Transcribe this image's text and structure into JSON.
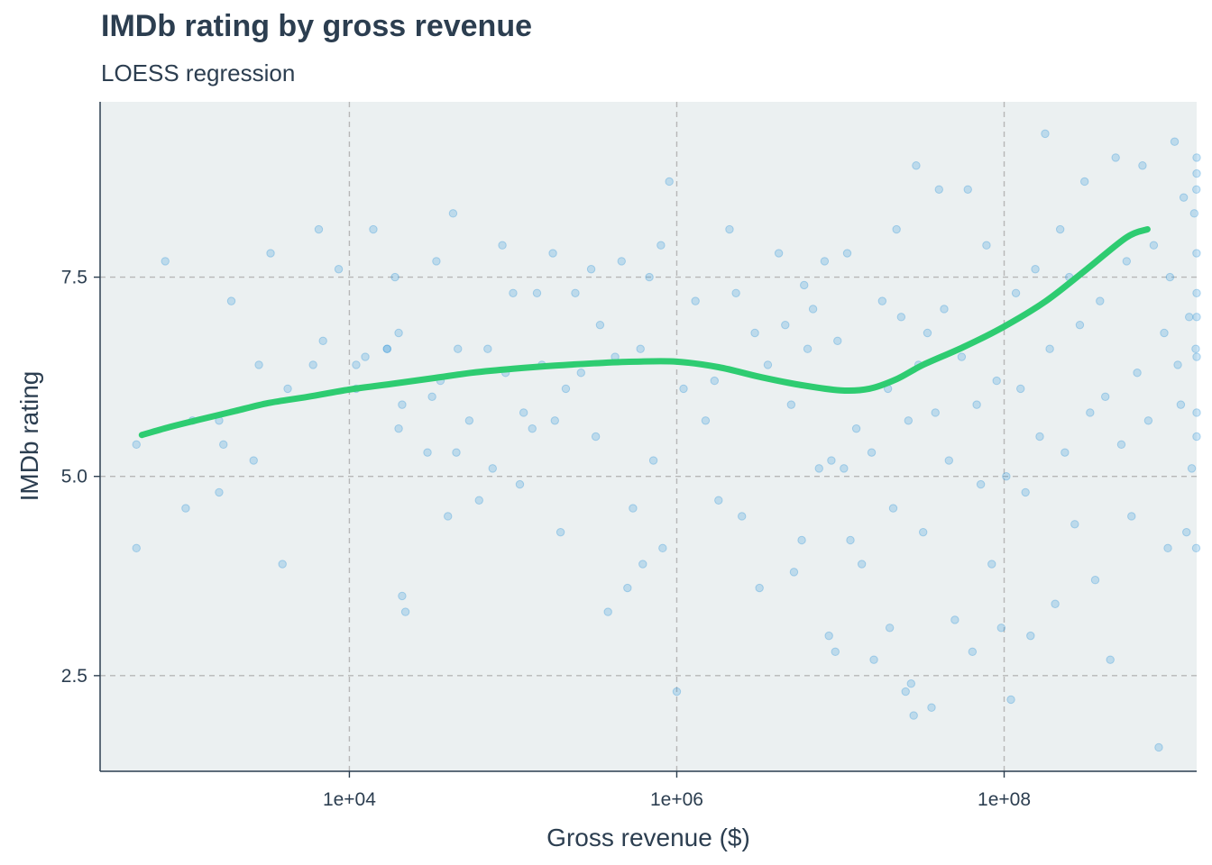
{
  "chart_data": {
    "type": "scatter",
    "title": "IMDb rating by gross revenue",
    "subtitle": "LOESS regression",
    "xlabel": "Gross revenue ($)",
    "ylabel": "IMDb rating",
    "x_scale": "log10",
    "xlim": [
      300,
      1500000000
    ],
    "ylim": [
      1.3,
      9.7
    ],
    "x_ticks": [
      10000,
      1000000,
      100000000
    ],
    "x_tick_labels": [
      "1e+04",
      "1e+06",
      "1e+08"
    ],
    "y_ticks": [
      2.5,
      5.0,
      7.5
    ],
    "y_tick_labels": [
      "2.5",
      "5.0",
      "7.5"
    ],
    "grid": true,
    "colors": {
      "panel": "#ebf0f1",
      "points": "#3498db",
      "loess": "#2ecc71",
      "grid": "#b7b7b7",
      "axis": "#2c3e50"
    },
    "series": [
      {
        "type": "scatter",
        "points": [
          [
            500,
            5.4
          ],
          [
            500,
            4.1
          ],
          [
            750,
            7.7
          ],
          [
            1000,
            4.6
          ],
          [
            1100,
            5.7
          ],
          [
            1600,
            5.7
          ],
          [
            1900,
            7.2
          ],
          [
            1600,
            4.8
          ],
          [
            1700,
            5.4
          ],
          [
            2800,
            6.4
          ],
          [
            2600,
            5.2
          ],
          [
            3300,
            7.8
          ],
          [
            4200,
            6.1
          ],
          [
            3900,
            3.9
          ],
          [
            6000,
            6.4
          ],
          [
            6500,
            8.1
          ],
          [
            6900,
            6.7
          ],
          [
            8600,
            7.6
          ],
          [
            11000,
            6.1
          ],
          [
            11000,
            6.4
          ],
          [
            12500,
            6.5
          ],
          [
            14000,
            8.1
          ],
          [
            17000,
            6.6
          ],
          [
            17000,
            6.6
          ],
          [
            19000,
            7.5
          ],
          [
            20000,
            5.6
          ],
          [
            20000,
            6.8
          ],
          [
            21000,
            5.9
          ],
          [
            21000,
            3.5
          ],
          [
            22000,
            3.3
          ],
          [
            30000,
            5.3
          ],
          [
            32000,
            6.0
          ],
          [
            34000,
            7.7
          ],
          [
            36000,
            6.2
          ],
          [
            40000,
            4.5
          ],
          [
            43000,
            8.3
          ],
          [
            46000,
            6.6
          ],
          [
            45000,
            5.3
          ],
          [
            54000,
            5.7
          ],
          [
            62000,
            4.7
          ],
          [
            70000,
            6.6
          ],
          [
            75000,
            5.1
          ],
          [
            86000,
            7.9
          ],
          [
            90000,
            6.3
          ],
          [
            100000,
            7.3
          ],
          [
            110000,
            4.9
          ],
          [
            116000,
            5.8
          ],
          [
            131000,
            5.6
          ],
          [
            140000,
            7.3
          ],
          [
            150000,
            6.4
          ],
          [
            175000,
            7.8
          ],
          [
            180000,
            5.7
          ],
          [
            195000,
            4.3
          ],
          [
            210000,
            6.1
          ],
          [
            240000,
            7.3
          ],
          [
            260000,
            6.3
          ],
          [
            300000,
            7.6
          ],
          [
            320000,
            5.5
          ],
          [
            340000,
            6.9
          ],
          [
            380000,
            3.3
          ],
          [
            420000,
            6.5
          ],
          [
            460000,
            7.7
          ],
          [
            500000,
            3.6
          ],
          [
            540000,
            4.6
          ],
          [
            600000,
            6.6
          ],
          [
            620000,
            3.9
          ],
          [
            680000,
            7.5
          ],
          [
            720000,
            5.2
          ],
          [
            800000,
            7.9
          ],
          [
            820000,
            4.1
          ],
          [
            900000,
            8.7
          ],
          [
            1000000,
            2.3
          ],
          [
            1100000,
            6.1
          ],
          [
            1300000,
            7.2
          ],
          [
            1500000,
            5.7
          ],
          [
            1700000,
            6.2
          ],
          [
            1800000,
            4.7
          ],
          [
            2100000,
            8.1
          ],
          [
            2300000,
            7.3
          ],
          [
            2500000,
            4.5
          ],
          [
            3000000,
            6.8
          ],
          [
            3200000,
            3.6
          ],
          [
            3600000,
            6.4
          ],
          [
            4200000,
            7.8
          ],
          [
            4600000,
            6.9
          ],
          [
            5000000,
            5.9
          ],
          [
            5200000,
            3.8
          ],
          [
            5800000,
            4.2
          ],
          [
            6000000,
            7.4
          ],
          [
            6300000,
            6.6
          ],
          [
            6800000,
            7.1
          ],
          [
            7400000,
            5.1
          ],
          [
            8000000,
            7.7
          ],
          [
            8500000,
            3.0
          ],
          [
            8800000,
            5.2
          ],
          [
            9300000,
            2.8
          ],
          [
            9600000,
            6.7
          ],
          [
            10500000,
            5.1
          ],
          [
            11000000,
            7.8
          ],
          [
            11500000,
            4.2
          ],
          [
            12500000,
            5.6
          ],
          [
            13500000,
            3.9
          ],
          [
            15500000,
            5.3
          ],
          [
            16000000,
            2.7
          ],
          [
            18000000,
            7.2
          ],
          [
            19500000,
            6.1
          ],
          [
            20000000,
            3.1
          ],
          [
            21000000,
            4.6
          ],
          [
            22000000,
            8.1
          ],
          [
            23500000,
            7.0
          ],
          [
            25000000,
            2.3
          ],
          [
            26000000,
            5.7
          ],
          [
            27000000,
            2.4
          ],
          [
            28000000,
            2.0
          ],
          [
            29000000,
            8.9
          ],
          [
            30000000,
            6.4
          ],
          [
            32000000,
            4.3
          ],
          [
            34000000,
            6.8
          ],
          [
            36000000,
            2.1
          ],
          [
            38000000,
            5.8
          ],
          [
            40000000,
            8.6
          ],
          [
            43000000,
            7.1
          ],
          [
            46000000,
            5.2
          ],
          [
            50000000,
            3.2
          ],
          [
            55000000,
            6.5
          ],
          [
            60000000,
            8.6
          ],
          [
            64000000,
            2.8
          ],
          [
            68000000,
            5.9
          ],
          [
            72000000,
            4.9
          ],
          [
            78000000,
            7.9
          ],
          [
            84000000,
            3.9
          ],
          [
            90000000,
            6.2
          ],
          [
            96000000,
            3.1
          ],
          [
            103000000,
            5.0
          ],
          [
            110000000,
            2.2
          ],
          [
            118000000,
            7.3
          ],
          [
            126000000,
            6.1
          ],
          [
            135000000,
            4.8
          ],
          [
            145000000,
            3.0
          ],
          [
            155000000,
            7.6
          ],
          [
            165000000,
            5.5
          ],
          [
            178000000,
            9.3
          ],
          [
            190000000,
            6.6
          ],
          [
            205000000,
            3.4
          ],
          [
            220000000,
            8.1
          ],
          [
            235000000,
            5.3
          ],
          [
            250000000,
            7.5
          ],
          [
            270000000,
            4.4
          ],
          [
            290000000,
            6.9
          ],
          [
            310000000,
            8.7
          ],
          [
            335000000,
            5.8
          ],
          [
            360000000,
            3.7
          ],
          [
            385000000,
            7.2
          ],
          [
            415000000,
            6.0
          ],
          [
            445000000,
            2.7
          ],
          [
            480000000,
            9.0
          ],
          [
            520000000,
            5.4
          ],
          [
            560000000,
            7.7
          ],
          [
            600000000,
            4.5
          ],
          [
            650000000,
            6.3
          ],
          [
            700000000,
            8.9
          ],
          [
            760000000,
            5.7
          ],
          [
            820000000,
            7.9
          ],
          [
            880000000,
            1.6
          ],
          [
            950000000,
            6.8
          ],
          [
            1000000000,
            4.1
          ],
          [
            1030000000,
            7.5
          ],
          [
            1100000000,
            9.2
          ],
          [
            1150000000,
            6.4
          ],
          [
            1200000000,
            5.9
          ],
          [
            1250000000,
            8.5
          ],
          [
            1300000000,
            4.3
          ],
          [
            1350000000,
            7.0
          ],
          [
            1400000000,
            5.1
          ],
          [
            1450000000,
            8.3
          ],
          [
            1480000000,
            6.6
          ],
          [
            1490000000,
            4.1
          ],
          [
            1495000000,
            8.6
          ],
          [
            1498000000,
            7.8
          ],
          [
            1499000000,
            5.5
          ],
          [
            1500000000,
            6.5
          ],
          [
            1500000000,
            8.8
          ],
          [
            1500000000,
            7.3
          ],
          [
            1500000000,
            5.8
          ],
          [
            1500000000,
            9.0
          ],
          [
            1500000000,
            7.0
          ]
        ]
      },
      {
        "type": "line",
        "points": [
          [
            540,
            5.52
          ],
          [
            800,
            5.62
          ],
          [
            1200,
            5.71
          ],
          [
            2000,
            5.82
          ],
          [
            3200,
            5.92
          ],
          [
            5600,
            6.0
          ],
          [
            10000,
            6.09
          ],
          [
            18000,
            6.16
          ],
          [
            32000,
            6.23
          ],
          [
            56000,
            6.3
          ],
          [
            100000,
            6.35
          ],
          [
            180000,
            6.39
          ],
          [
            320000,
            6.42
          ],
          [
            560000,
            6.44
          ],
          [
            1000000,
            6.44
          ],
          [
            1800000,
            6.37
          ],
          [
            3200000,
            6.25
          ],
          [
            5600000,
            6.15
          ],
          [
            10000000,
            6.08
          ],
          [
            15000000,
            6.1
          ],
          [
            22000000,
            6.22
          ],
          [
            32000000,
            6.4
          ],
          [
            56000000,
            6.62
          ],
          [
            100000000,
            6.88
          ],
          [
            180000000,
            7.2
          ],
          [
            320000000,
            7.6
          ],
          [
            560000000,
            8.0
          ],
          [
            750000000,
            8.1
          ]
        ]
      }
    ]
  }
}
